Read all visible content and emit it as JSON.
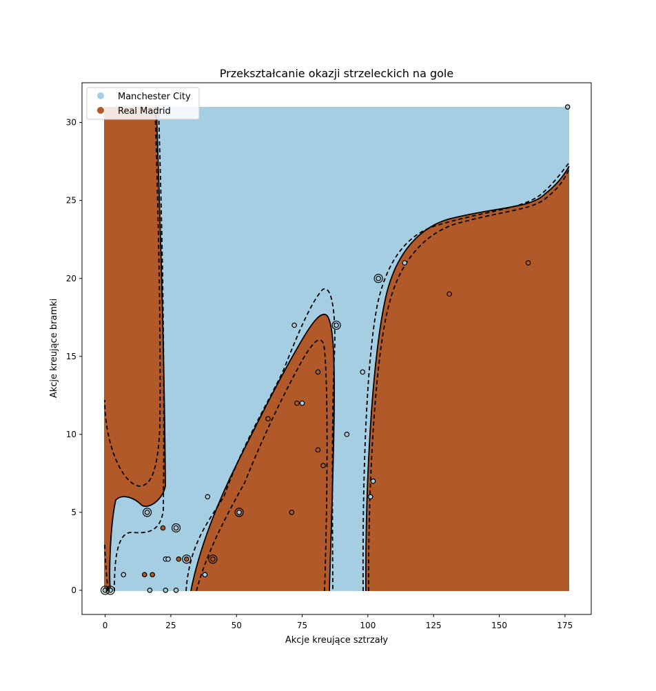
{
  "chart_data": {
    "type": "scatter",
    "title": "Przekształcanie okazji strzeleckich na gole",
    "xlabel": "Akcje kreujące sztrzały",
    "ylabel": "Akcje kreujące bramki",
    "xlim": [
      -8.8,
      185
    ],
    "ylim": [
      -1.55,
      32.55
    ],
    "xticks": [
      0,
      25,
      50,
      75,
      100,
      125,
      150,
      175
    ],
    "yticks": [
      0,
      5,
      10,
      15,
      20,
      25,
      30
    ],
    "legend": {
      "position": "upper-left",
      "entries": [
        "Manchester City",
        "Real Madrid"
      ]
    },
    "colors": {
      "Manchester City": "#a6cee3",
      "Real Madrid": "#b15928",
      "boundary": "#000000"
    },
    "background_class": "Manchester City",
    "region_extent": {
      "x": [
        0,
        176
      ],
      "y": [
        0,
        31
      ]
    },
    "boundary_styles": [
      "solid",
      "dashed"
    ],
    "series": [
      {
        "name": "Manchester City",
        "points": [
          [
            7,
            1
          ],
          [
            17,
            0
          ],
          [
            23,
            0
          ],
          [
            27,
            0
          ],
          [
            23,
            2
          ],
          [
            24,
            2
          ],
          [
            16,
            5
          ],
          [
            39,
            6
          ],
          [
            38,
            1
          ],
          [
            51,
            5
          ],
          [
            72,
            17
          ],
          [
            88,
            17
          ],
          [
            75,
            12
          ],
          [
            92,
            10
          ],
          [
            98,
            14
          ],
          [
            101,
            6
          ],
          [
            102,
            7
          ],
          [
            104,
            20
          ],
          [
            114,
            21
          ],
          [
            176,
            31
          ],
          [
            0,
            0
          ],
          [
            2,
            0
          ],
          [
            27,
            4
          ]
        ]
      },
      {
        "name": "Real Madrid",
        "points": [
          [
            15,
            1
          ],
          [
            18,
            1
          ],
          [
            22,
            4
          ],
          [
            28,
            2
          ],
          [
            31,
            2
          ],
          [
            41,
            2
          ],
          [
            62,
            11
          ],
          [
            71,
            5
          ],
          [
            73,
            12
          ],
          [
            81,
            14
          ],
          [
            81,
            9
          ],
          [
            83,
            8
          ],
          [
            131,
            19
          ],
          [
            161,
            21
          ]
        ]
      }
    ],
    "support_vectors": [
      [
        0,
        0
      ],
      [
        2,
        0
      ],
      [
        16,
        5
      ],
      [
        27,
        4
      ],
      [
        31,
        2
      ],
      [
        41,
        2
      ],
      [
        51,
        5
      ],
      [
        88,
        17
      ],
      [
        104,
        20
      ]
    ]
  }
}
